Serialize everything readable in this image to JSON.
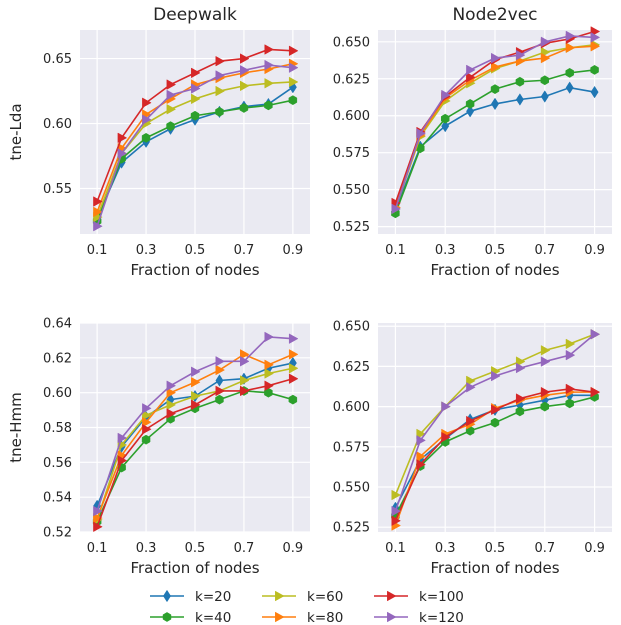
{
  "chart_data": [
    {
      "type": "line",
      "title": "Deepwalk",
      "xlabel": "Fraction of nodes",
      "ylabel": "tne-Lda",
      "x": [
        0.1,
        0.2,
        0.3,
        0.4,
        0.5,
        0.6,
        0.7,
        0.8,
        0.9
      ],
      "xticks": [
        "0.1",
        "0.3",
        "0.5",
        "0.7",
        "0.9"
      ],
      "yticks": [
        "0.55",
        "0.60",
        "0.65"
      ],
      "ylim": [
        0.515,
        0.672
      ],
      "series": [
        {
          "name": "k=20",
          "values": [
            0.527,
            0.57,
            0.586,
            0.596,
            0.603,
            0.609,
            0.613,
            0.615,
            0.628
          ]
        },
        {
          "name": "k=40",
          "values": [
            0.525,
            0.573,
            0.589,
            0.598,
            0.606,
            0.609,
            0.612,
            0.614,
            0.618
          ]
        },
        {
          "name": "k=60",
          "values": [
            0.528,
            0.577,
            0.6,
            0.611,
            0.619,
            0.625,
            0.629,
            0.631,
            0.632
          ]
        },
        {
          "name": "k=80",
          "values": [
            0.532,
            0.581,
            0.607,
            0.619,
            0.63,
            0.635,
            0.639,
            0.642,
            0.646
          ]
        },
        {
          "name": "k=100",
          "values": [
            0.54,
            0.589,
            0.616,
            0.63,
            0.639,
            0.648,
            0.65,
            0.657,
            0.656
          ]
        },
        {
          "name": "k=120",
          "values": [
            0.521,
            0.577,
            0.603,
            0.622,
            0.627,
            0.637,
            0.641,
            0.645,
            0.643
          ]
        }
      ]
    },
    {
      "type": "line",
      "title": "Node2vec",
      "xlabel": "Fraction of nodes",
      "ylabel": "",
      "x": [
        0.1,
        0.2,
        0.3,
        0.4,
        0.5,
        0.6,
        0.7,
        0.8,
        0.9
      ],
      "xticks": [
        "0.1",
        "0.3",
        "0.5",
        "0.7",
        "0.9"
      ],
      "yticks": [
        "0.525",
        "0.550",
        "0.575",
        "0.600",
        "0.625",
        "0.650"
      ],
      "ylim": [
        0.52,
        0.658
      ],
      "series": [
        {
          "name": "k=20",
          "values": [
            0.536,
            0.579,
            0.593,
            0.603,
            0.608,
            0.611,
            0.613,
            0.619,
            0.616
          ]
        },
        {
          "name": "k=40",
          "values": [
            0.534,
            0.578,
            0.598,
            0.608,
            0.618,
            0.623,
            0.624,
            0.629,
            0.631
          ]
        },
        {
          "name": "k=60",
          "values": [
            0.537,
            0.586,
            0.61,
            0.622,
            0.632,
            0.637,
            0.643,
            0.646,
            0.648
          ]
        },
        {
          "name": "k=80",
          "values": [
            0.538,
            0.587,
            0.612,
            0.624,
            0.633,
            0.637,
            0.639,
            0.646,
            0.647
          ]
        },
        {
          "name": "k=100",
          "values": [
            0.541,
            0.589,
            0.613,
            0.626,
            0.638,
            0.643,
            0.649,
            0.652,
            0.657
          ]
        },
        {
          "name": "k=120",
          "values": [
            0.537,
            0.588,
            0.614,
            0.631,
            0.639,
            0.641,
            0.65,
            0.654,
            0.653
          ]
        }
      ]
    },
    {
      "type": "line",
      "title": "",
      "xlabel": "Fraction of nodes",
      "ylabel": "tne-Hmm",
      "x": [
        0.1,
        0.2,
        0.3,
        0.4,
        0.5,
        0.6,
        0.7,
        0.8,
        0.9
      ],
      "xticks": [
        "0.1",
        "0.3",
        "0.5",
        "0.7",
        "0.9"
      ],
      "yticks": [
        "0.52",
        "0.54",
        "0.56",
        "0.58",
        "0.60",
        "0.62",
        "0.64"
      ],
      "ylim": [
        0.52,
        0.64
      ],
      "series": [
        {
          "name": "k=20",
          "values": [
            0.535,
            0.569,
            0.586,
            0.596,
            0.598,
            0.607,
            0.608,
            0.614,
            0.617
          ]
        },
        {
          "name": "k=40",
          "values": [
            0.526,
            0.557,
            0.573,
            0.585,
            0.591,
            0.596,
            0.601,
            0.6,
            0.596
          ]
        },
        {
          "name": "k=60",
          "values": [
            0.527,
            0.57,
            0.587,
            0.593,
            0.598,
            0.601,
            0.607,
            0.611,
            0.614
          ]
        },
        {
          "name": "k=80",
          "values": [
            0.528,
            0.564,
            0.583,
            0.6,
            0.606,
            0.613,
            0.622,
            0.616,
            0.622
          ]
        },
        {
          "name": "k=100",
          "values": [
            0.523,
            0.561,
            0.579,
            0.588,
            0.593,
            0.601,
            0.601,
            0.604,
            0.608
          ]
        },
        {
          "name": "k=120",
          "values": [
            0.532,
            0.574,
            0.591,
            0.604,
            0.612,
            0.618,
            0.618,
            0.632,
            0.631
          ]
        }
      ]
    },
    {
      "type": "line",
      "title": "",
      "xlabel": "Fraction of nodes",
      "ylabel": "",
      "x": [
        0.1,
        0.2,
        0.3,
        0.4,
        0.5,
        0.6,
        0.7,
        0.8,
        0.9
      ],
      "xticks": [
        "0.1",
        "0.3",
        "0.5",
        "0.7",
        "0.9"
      ],
      "yticks": [
        "0.525",
        "0.550",
        "0.575",
        "0.600",
        "0.625",
        "0.650"
      ],
      "ylim": [
        0.522,
        0.652
      ],
      "series": [
        {
          "name": "k=20",
          "values": [
            0.537,
            0.567,
            0.58,
            0.592,
            0.598,
            0.601,
            0.604,
            0.607,
            0.607
          ]
        },
        {
          "name": "k=40",
          "values": [
            0.532,
            0.563,
            0.578,
            0.585,
            0.59,
            0.597,
            0.6,
            0.602,
            0.606
          ]
        },
        {
          "name": "k=60",
          "values": [
            0.545,
            0.583,
            0.6,
            0.616,
            0.622,
            0.628,
            0.635,
            0.639,
            0.645
          ]
        },
        {
          "name": "k=80",
          "values": [
            0.526,
            0.569,
            0.583,
            0.589,
            0.599,
            0.604,
            0.607,
            0.609,
            0.609
          ]
        },
        {
          "name": "k=100",
          "values": [
            0.529,
            0.564,
            0.581,
            0.591,
            0.598,
            0.605,
            0.609,
            0.611,
            0.609
          ]
        },
        {
          "name": "k=120",
          "values": [
            0.535,
            0.579,
            0.6,
            0.612,
            0.619,
            0.624,
            0.628,
            0.632,
            0.645
          ]
        }
      ]
    }
  ],
  "legend": {
    "items": [
      {
        "label": "k=20",
        "color": "#1f77b4",
        "marker": "diamond"
      },
      {
        "label": "k=40",
        "color": "#2ca02c",
        "marker": "hexagon"
      },
      {
        "label": "k=60",
        "color": "#bcbd22",
        "marker": "triangle-right"
      },
      {
        "label": "k=80",
        "color": "#ff7f0e",
        "marker": "triangle-right"
      },
      {
        "label": "k=100",
        "color": "#d62728",
        "marker": "triangle-right"
      },
      {
        "label": "k=120",
        "color": "#9467bd",
        "marker": "triangle-right"
      }
    ],
    "placement": "bottom-center"
  },
  "style": {
    "panel_background": "#eaeaf2",
    "grid_color": "#ffffff",
    "grid": true
  }
}
